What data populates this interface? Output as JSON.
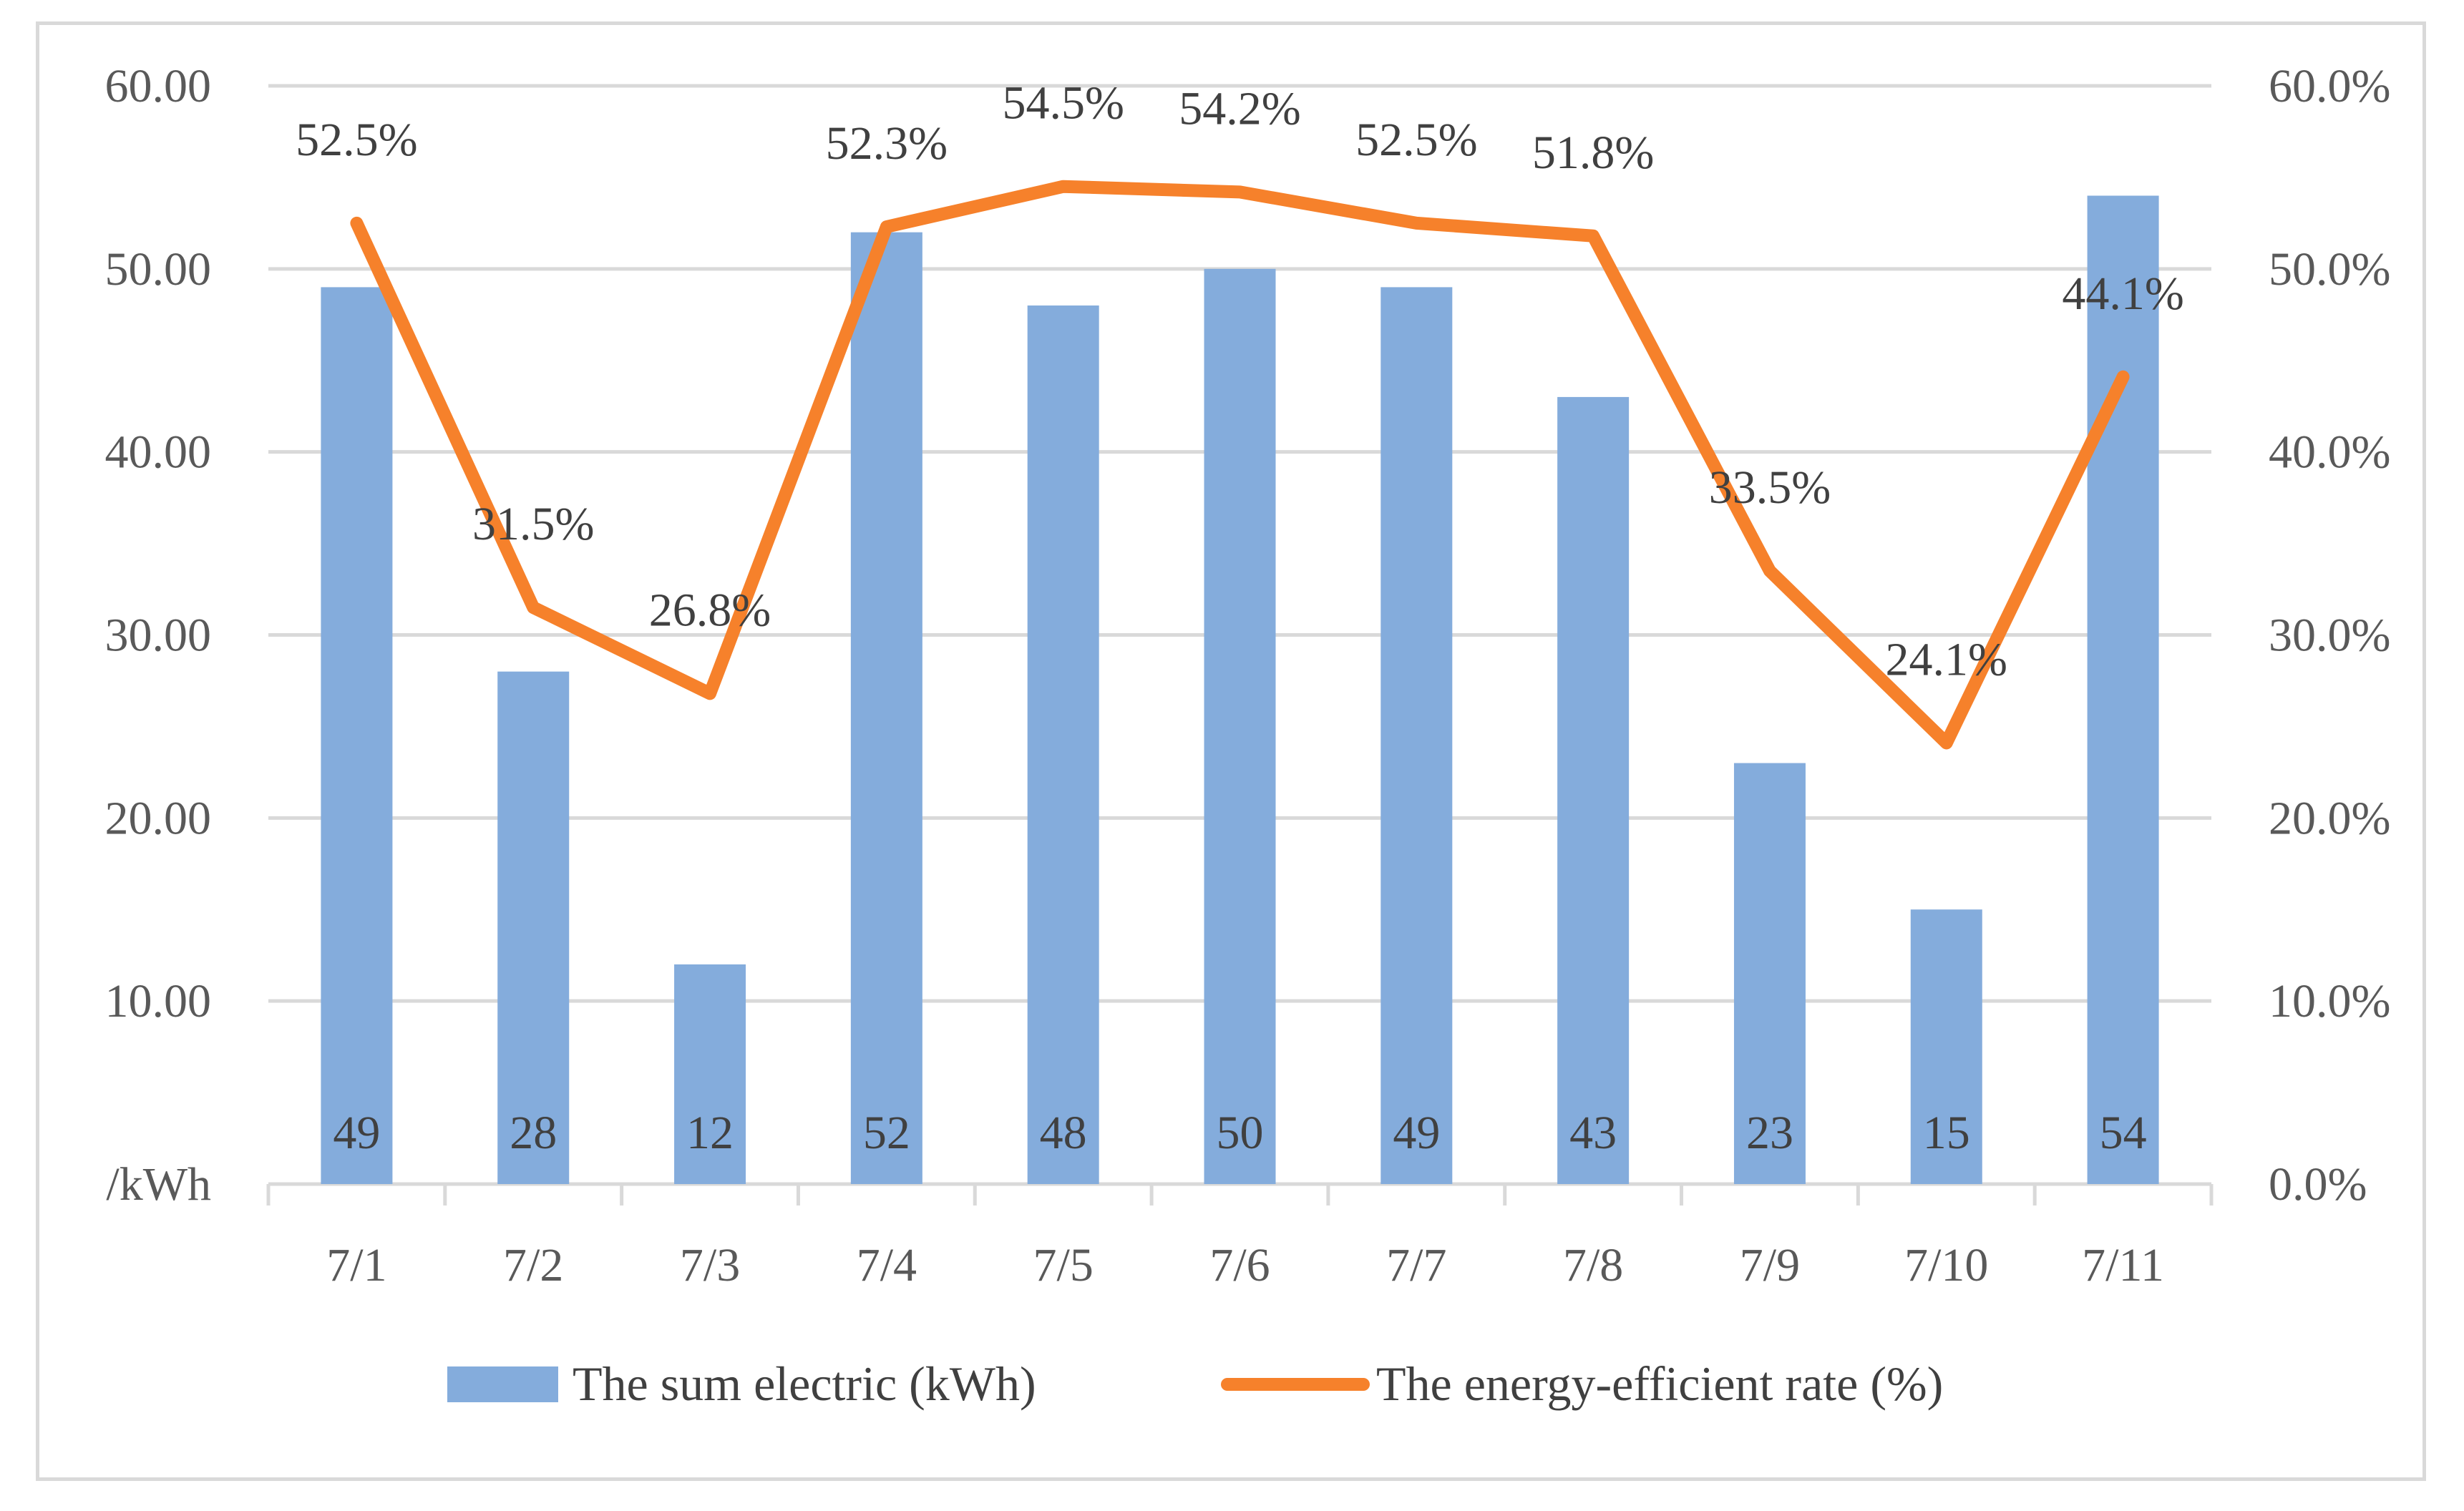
{
  "chart_data": {
    "type": "bar+line",
    "categories": [
      "7/1",
      "7/2",
      "7/3",
      "7/4",
      "7/5",
      "7/6",
      "7/7",
      "7/8",
      "7/9",
      "7/10",
      "7/11"
    ],
    "series": [
      {
        "name": "The sum electric (kWh)",
        "type": "bar",
        "axis": "left",
        "color": "#84acdc",
        "values": [
          49,
          28,
          12,
          52,
          48,
          50,
          49,
          43,
          23,
          15,
          54
        ],
        "labels": [
          "49",
          "28",
          "12",
          "52",
          "48",
          "50",
          "49",
          "43",
          "23",
          "15",
          "54"
        ]
      },
      {
        "name": "The energy-efficient rate (%)",
        "type": "line",
        "axis": "right",
        "color": "#f6812b",
        "values": [
          52.5,
          31.5,
          26.8,
          52.3,
          54.5,
          54.2,
          52.5,
          51.8,
          33.5,
          24.1,
          44.1
        ],
        "labels": [
          "52.5%",
          "31.5%",
          "26.8%",
          "52.3%",
          "54.5%",
          "54.2%",
          "52.5%",
          "51.8%",
          "33.5%",
          "24.1%",
          "44.1%"
        ]
      }
    ],
    "left_axis": {
      "min": 0,
      "max": 60,
      "tick_values": [
        60,
        50,
        40,
        30,
        20,
        10
      ],
      "tick_labels": [
        "60.00",
        "50.00",
        "40.00",
        "30.00",
        "20.00",
        "10.00"
      ],
      "bottom_label": "/kWh"
    },
    "right_axis": {
      "min": 0,
      "max": 60,
      "tick_values": [
        60,
        50,
        40,
        30,
        20,
        10,
        0
      ],
      "tick_labels": [
        "60.0%",
        "50.0%",
        "40.0%",
        "30.0%",
        "20.0%",
        "10.0%",
        "0.0%"
      ]
    },
    "gridlines": true,
    "legend_position": "bottom",
    "colors": {
      "grid": "#d9d9d9",
      "text": "#595959",
      "border": "#d9d9d9"
    }
  }
}
